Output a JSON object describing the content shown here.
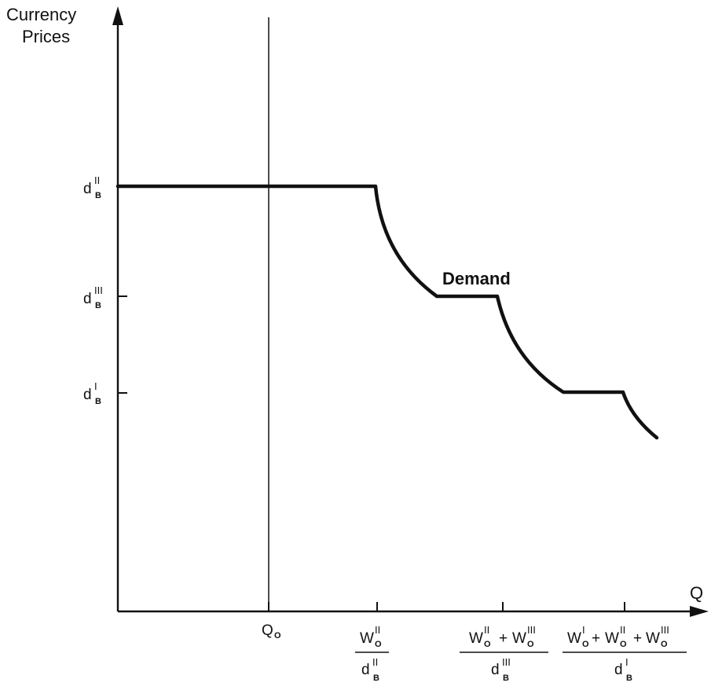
{
  "chart_data": {
    "type": "line",
    "title": "",
    "ylabel": {
      "line1": "Currency",
      "line2": "Prices"
    },
    "xlabel": "Q",
    "series_label": "Demand",
    "y_ticks": [
      {
        "id": "dB2",
        "base": "d",
        "sup": "II",
        "sub": "B"
      },
      {
        "id": "dB3",
        "base": "d",
        "sup": "III",
        "sub": "B"
      },
      {
        "id": "dB1",
        "base": "d",
        "sup": "I",
        "sub": "B"
      }
    ],
    "x_ticks": [
      {
        "id": "Q0",
        "text": "Q",
        "sub": "O"
      },
      {
        "id": "t1",
        "numerator": [
          {
            "base": "W",
            "sub": "O",
            "sup": "II"
          }
        ],
        "denominator": {
          "base": "d",
          "sup": "II",
          "sub": "B"
        }
      },
      {
        "id": "t2",
        "numerator": [
          {
            "base": "W",
            "sub": "O",
            "sup": "II"
          },
          {
            "base": "W",
            "sub": "O",
            "sup": "III"
          }
        ],
        "denominator": {
          "base": "d",
          "sup": "III",
          "sub": "B"
        }
      },
      {
        "id": "t3",
        "numerator": [
          {
            "base": "W",
            "sub": "O",
            "sup": "I"
          },
          {
            "base": "W",
            "sub": "O",
            "sup": "II"
          },
          {
            "base": "W",
            "sub": "O",
            "sup": "III"
          }
        ],
        "denominator": {
          "base": "d",
          "sup": "I",
          "sub": "B"
        }
      }
    ],
    "plus_sign": "+",
    "colors": {
      "ink": "#111111",
      "background": "#ffffff"
    }
  }
}
